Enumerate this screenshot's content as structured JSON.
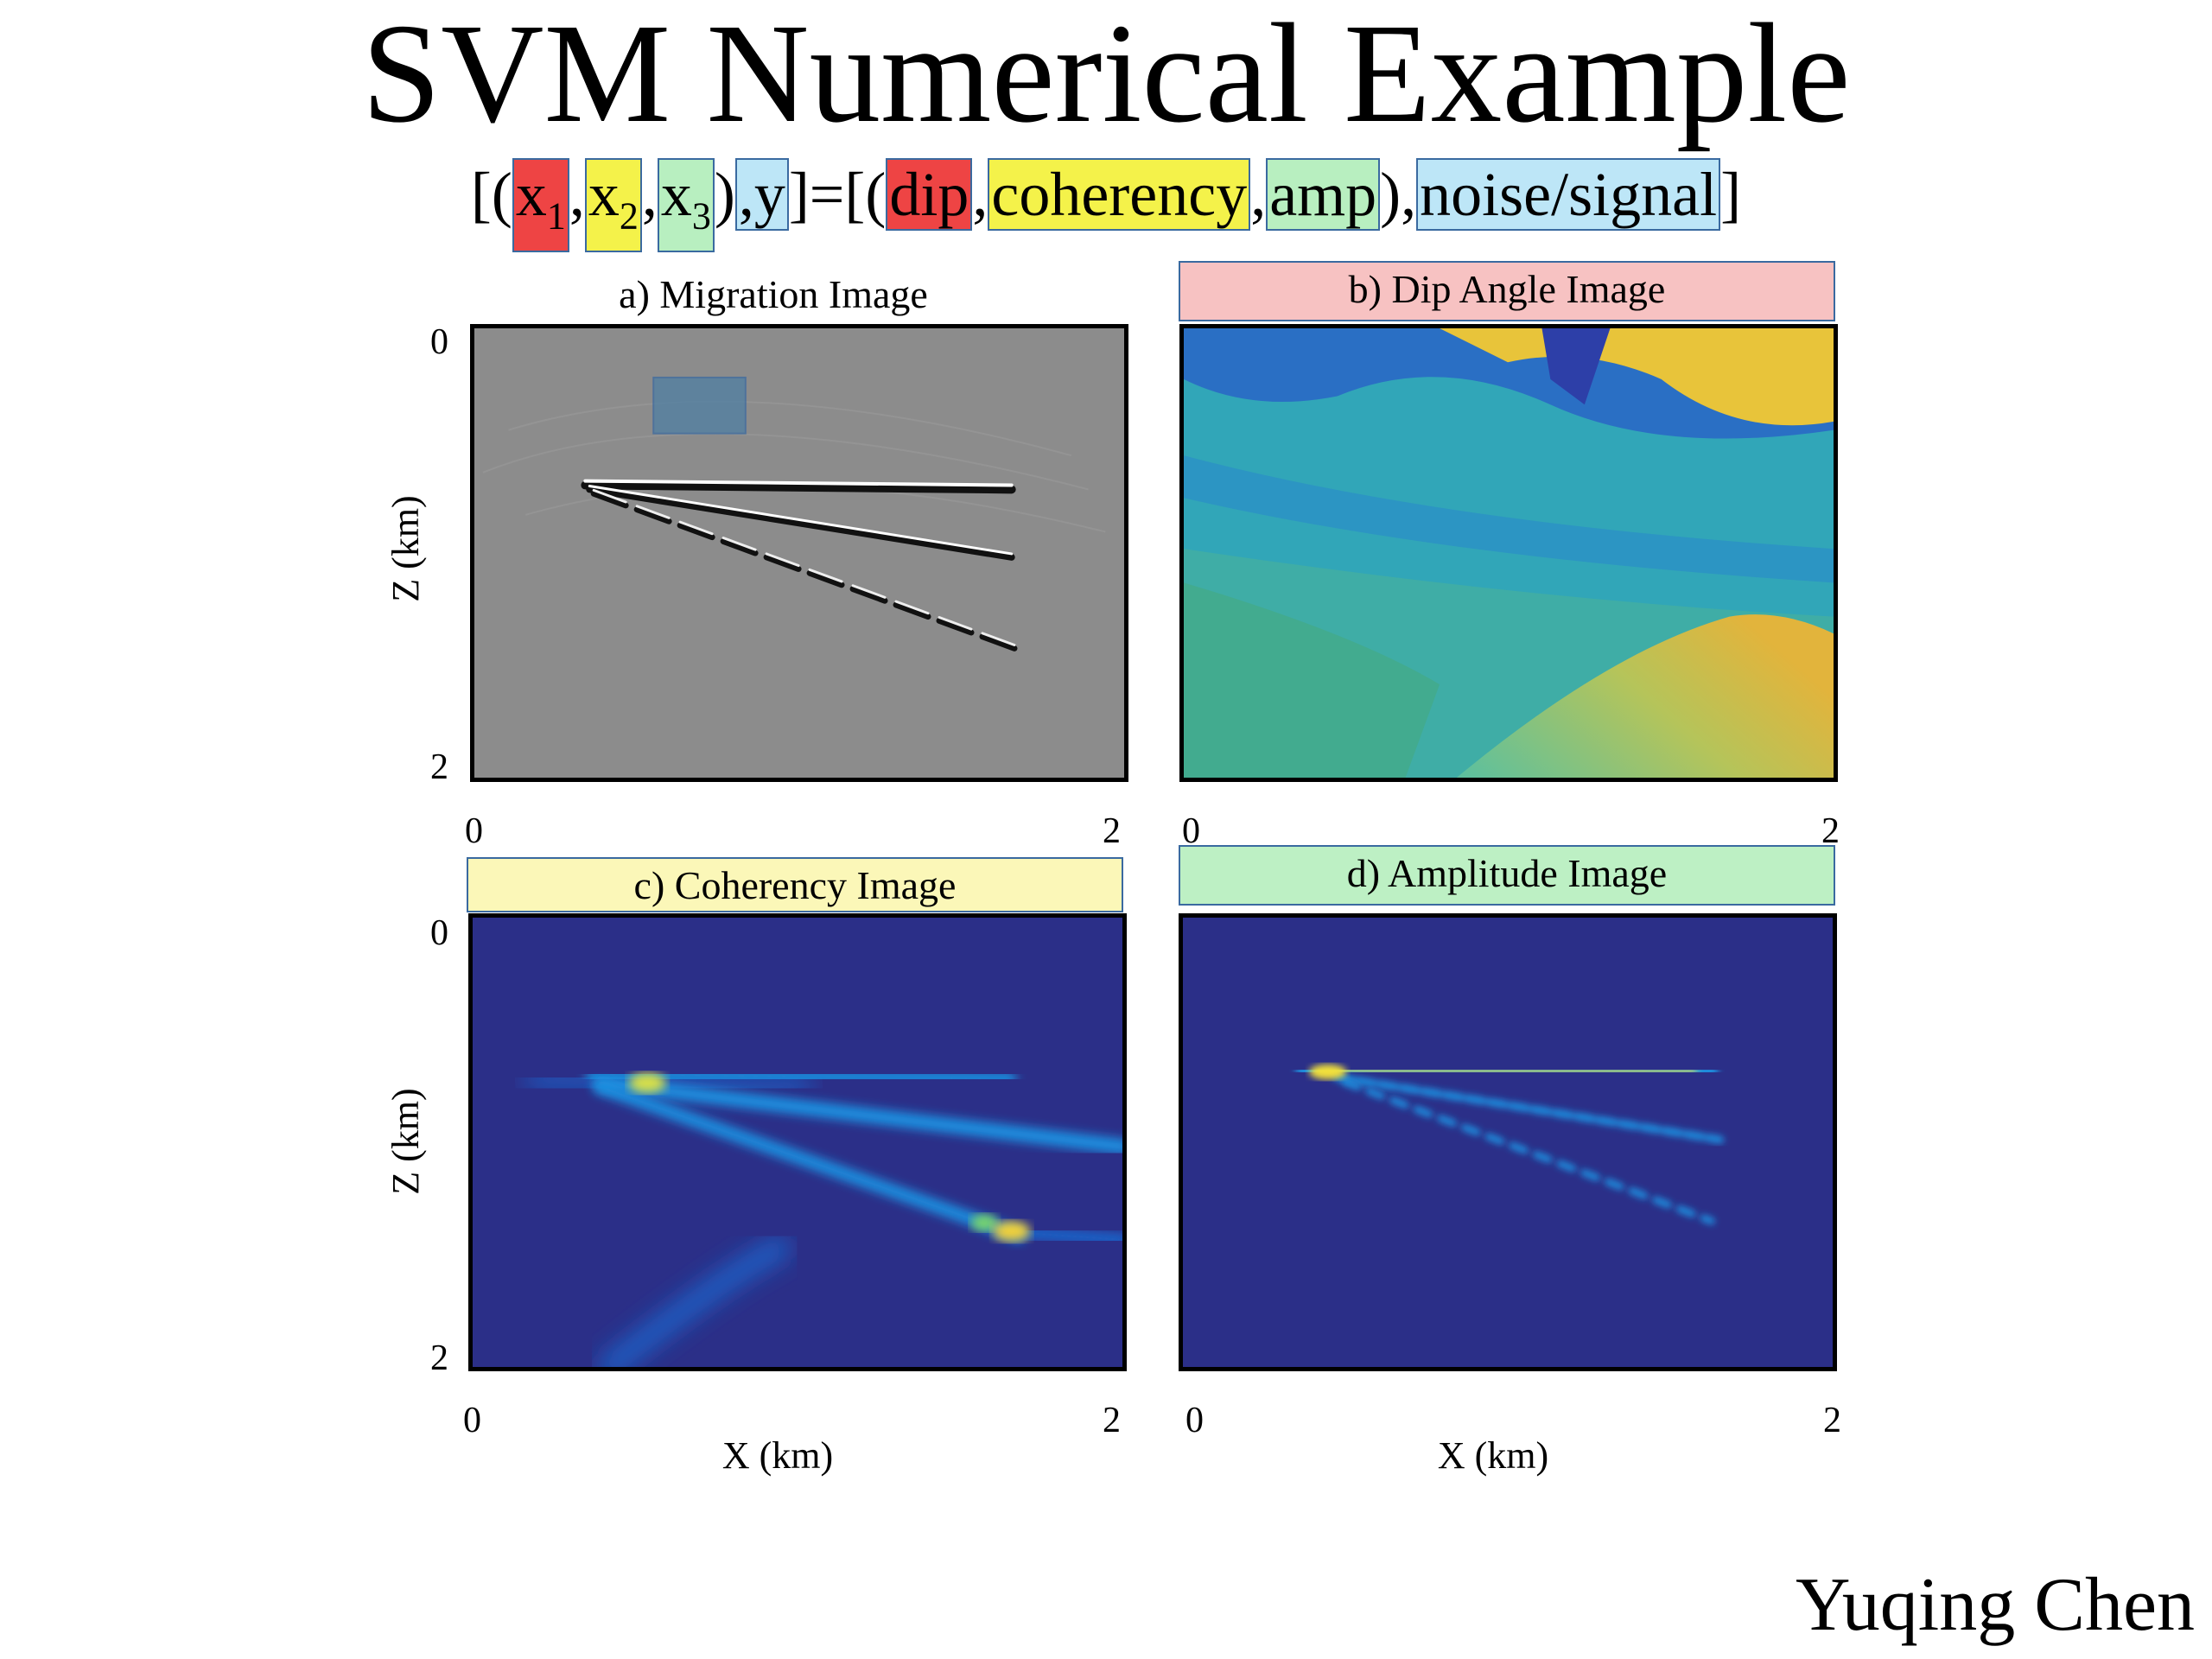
{
  "slide": {
    "title": "SVM Numerical Example",
    "author": "Yuqing Chen"
  },
  "formula": {
    "open": "[(",
    "x1": "x",
    "x1_sub": "1",
    "sep1": ",",
    "x2": "x",
    "x2_sub": "2",
    "sep2": ",",
    "x3": "x",
    "x3_sub": "3",
    "sep3": ")",
    "y": ",y",
    "equals": "]=[(",
    "dip": "dip",
    "sep4": ",",
    "coherency": "coherency",
    "sep5": ",",
    "amp": "amp",
    "sep6": "),",
    "noise_signal": "noise/signal",
    "close": "]",
    "colors": {
      "x1": "#ee4444",
      "x2": "#f4f24a",
      "x3": "#b8efc0",
      "y": "#bde6f7"
    }
  },
  "panels": {
    "a": {
      "title": "a) Migration Image",
      "ylabel": "Z (km)",
      "y_top": "0",
      "y_bottom": "2",
      "x_left": "0",
      "x_right": "2"
    },
    "b": {
      "title": "b) Dip Angle Image",
      "x_left": "0",
      "x_right": "2",
      "highlight": "#f7c2c2"
    },
    "c": {
      "title": "c) Coherency Image",
      "ylabel": "Z (km)",
      "y_top": "0",
      "y_bottom": "2",
      "x_left": "0",
      "x_right": "2",
      "xlabel": "X (km)",
      "highlight": "#fbf7b8"
    },
    "d": {
      "title": "d) Amplitude Image",
      "x_left": "0",
      "x_right": "2",
      "xlabel": "X (km)",
      "highlight": "#bdf0c4"
    }
  }
}
